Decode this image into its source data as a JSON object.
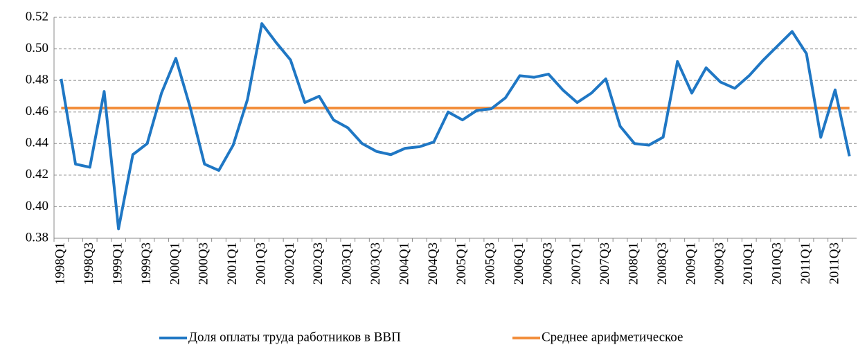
{
  "chart_data": {
    "type": "line",
    "categories": [
      "1998Q1",
      null,
      "1998Q3",
      null,
      "1999Q1",
      null,
      "1999Q3",
      null,
      "2000Q1",
      null,
      "2000Q3",
      null,
      "2001Q1",
      null,
      "2001Q3",
      null,
      "2002Q1",
      null,
      "2002Q3",
      null,
      "2003Q1",
      null,
      "2003Q3",
      null,
      "2004Q1",
      null,
      "2004Q3",
      null,
      "2005Q1",
      null,
      "2005Q3",
      null,
      "2006Q1",
      null,
      "2006Q3",
      null,
      "2007Q1",
      null,
      "2007Q3",
      null,
      "2008Q1",
      null,
      "2008Q3",
      null,
      "2009Q1",
      null,
      "2009Q3",
      null,
      "2010Q1",
      null,
      "2010Q3",
      null,
      "2011Q1",
      null,
      "2011Q3",
      null
    ],
    "series": [
      {
        "name": "Доля оплаты труда работников в ВВП",
        "color": "#1f77c4",
        "values": [
          0.481,
          0.427,
          0.425,
          0.473,
          0.386,
          0.433,
          0.44,
          0.472,
          0.494,
          0.463,
          0.427,
          0.423,
          0.439,
          0.468,
          0.516,
          0.504,
          0.493,
          0.466,
          0.47,
          0.455,
          0.45,
          0.44,
          0.435,
          0.433,
          0.437,
          0.438,
          0.441,
          0.46,
          0.455,
          0.461,
          0.462,
          0.469,
          0.483,
          0.482,
          0.484,
          0.474,
          0.466,
          0.472,
          0.481,
          0.451,
          0.44,
          0.439,
          0.444,
          0.492,
          0.472,
          0.488,
          0.479,
          0.475,
          0.483,
          0.493,
          0.502,
          0.511,
          0.497,
          0.444,
          0.474,
          0.432
        ]
      },
      {
        "name": "Среднее арифметическое",
        "color": "#f28e3c",
        "values": [
          0.4625,
          0.4625,
          0.4625,
          0.4625,
          0.4625,
          0.4625,
          0.4625,
          0.4625,
          0.4625,
          0.4625,
          0.4625,
          0.4625,
          0.4625,
          0.4625,
          0.4625,
          0.4625,
          0.4625,
          0.4625,
          0.4625,
          0.4625,
          0.4625,
          0.4625,
          0.4625,
          0.4625,
          0.4625,
          0.4625,
          0.4625,
          0.4625,
          0.4625,
          0.4625,
          0.4625,
          0.4625,
          0.4625,
          0.4625,
          0.4625,
          0.4625,
          0.4625,
          0.4625,
          0.4625,
          0.4625,
          0.4625,
          0.4625,
          0.4625,
          0.4625,
          0.4625,
          0.4625,
          0.4625,
          0.4625,
          0.4625,
          0.4625,
          0.4625,
          0.4625,
          0.4625,
          0.4625,
          0.4625,
          0.4625
        ]
      }
    ],
    "ylim": [
      0.38,
      0.52
    ],
    "yticks": [
      0.38,
      {
        "value": 0.4,
        "label": "0.40"
      },
      0.42,
      0.44,
      0.46,
      0.48,
      {
        "value": 0.5,
        "label": "0.50"
      },
      0.52
    ],
    "grid": true,
    "legend": "bottom"
  }
}
